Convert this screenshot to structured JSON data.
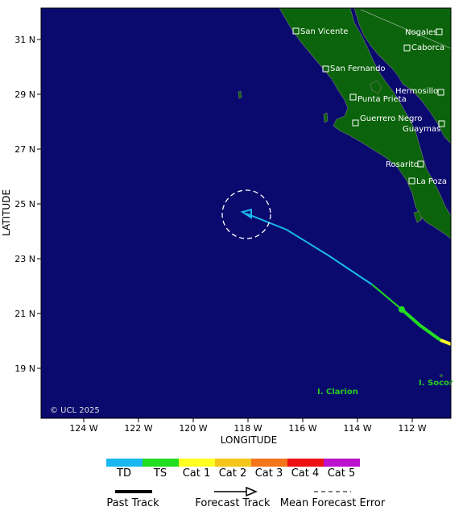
{
  "map": {
    "copyright": "© UCL 2025",
    "xlabel": "LONGITUDE",
    "ylabel": "LATITUDE",
    "lon_ticks": [
      "124 W",
      "122 W",
      "120 W",
      "118 W",
      "116 W",
      "114 W",
      "112 W"
    ],
    "lat_ticks": [
      "31 N",
      "29 N",
      "27 N",
      "25 N",
      "23 N",
      "21 N",
      "19 N"
    ],
    "ocean_color": "#0a0a6e",
    "land_color": "#0b640b",
    "cities": [
      {
        "name": "San Vicente"
      },
      {
        "name": "Nogales"
      },
      {
        "name": "Caborca"
      },
      {
        "name": "San Fernando"
      },
      {
        "name": "Hermosillo"
      },
      {
        "name": "Punta Prieta"
      },
      {
        "name": "Guerrero Negro"
      },
      {
        "name": "Guaymas"
      },
      {
        "name": "Rosarito"
      },
      {
        "name": "La Poza"
      }
    ],
    "islands": [
      {
        "name": "I. Clarion"
      },
      {
        "name": "I. Socor"
      }
    ]
  },
  "legend": {
    "categories": [
      {
        "label": "TD",
        "color": "#1ab8f0"
      },
      {
        "label": "TS",
        "color": "#22dd22"
      },
      {
        "label": "Cat 1",
        "color": "#ffff22"
      },
      {
        "label": "Cat 2",
        "color": "#f5c51a"
      },
      {
        "label": "Cat 3",
        "color": "#f5751a"
      },
      {
        "label": "Cat 4",
        "color": "#ee1111"
      },
      {
        "label": "Cat 5",
        "color": "#bb11cc"
      }
    ],
    "past_track": "Past Track",
    "forecast_track": "Forecast Track",
    "mean_error": "Mean Forecast Error"
  }
}
